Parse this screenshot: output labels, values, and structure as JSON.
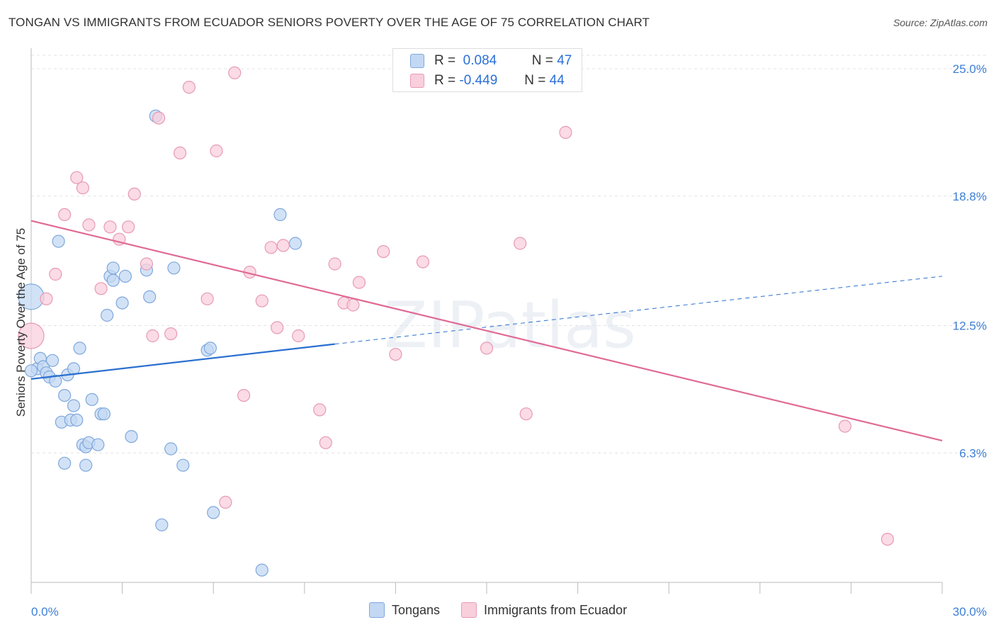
{
  "title": "TONGAN VS IMMIGRANTS FROM ECUADOR SENIORS POVERTY OVER THE AGE OF 75 CORRELATION CHART",
  "source": "Source: ZipAtlas.com",
  "watermark": "ZIPatlas",
  "legend": {
    "rows": [
      {
        "r_label": "R =",
        "r_value": "0.084",
        "n_label": "N =",
        "n_value": "47"
      },
      {
        "r_label": "R =",
        "r_value": "-0.449",
        "n_label": "N =",
        "n_value": "44"
      }
    ],
    "bottom": [
      "Tongans",
      "Immigrants from Ecuador"
    ]
  },
  "colors": {
    "tongans_fill": "#c3d8f3",
    "tongans_stroke": "#7fa8dc",
    "tongans_line": "#2a70d0",
    "ecuador_fill": "#f9cfdc",
    "ecuador_stroke": "#e79ab4",
    "ecuador_line": "#e06a95",
    "tick_label": "#3d7fd6"
  },
  "chart_data": {
    "type": "scatter",
    "xlabel": "",
    "ylabel": "Seniors Poverty Over the Age of 75",
    "xlim": [
      0,
      30
    ],
    "ylim": [
      0,
      26
    ],
    "x_tick_labels": [
      "0.0%",
      "30.0%"
    ],
    "y_ticks": [
      6.3,
      12.5,
      18.8,
      25.0
    ],
    "y_tick_labels": [
      "6.3%",
      "12.5%",
      "18.8%",
      "25.0%"
    ],
    "grid": true,
    "series": [
      {
        "name": "Tongans",
        "r": 0.084,
        "n": 47,
        "trend": {
          "x": [
            0,
            10
          ],
          "y": [
            9.9,
            11.6
          ],
          "dashed_to_x": 30,
          "dashed_end_y": 14.9
        },
        "points": [
          [
            0.0,
            13.9
          ],
          [
            0.2,
            10.4
          ],
          [
            0.3,
            10.9
          ],
          [
            0.4,
            10.5
          ],
          [
            0.5,
            10.2
          ],
          [
            0.6,
            10.0
          ],
          [
            0.7,
            10.8
          ],
          [
            0.8,
            9.8
          ],
          [
            0.9,
            16.6
          ],
          [
            1.0,
            7.8
          ],
          [
            1.1,
            5.8
          ],
          [
            1.1,
            9.1
          ],
          [
            1.2,
            10.1
          ],
          [
            1.3,
            7.9
          ],
          [
            1.4,
            8.6
          ],
          [
            1.4,
            10.4
          ],
          [
            1.5,
            7.9
          ],
          [
            1.6,
            11.4
          ],
          [
            1.7,
            6.7
          ],
          [
            1.8,
            6.6
          ],
          [
            1.8,
            5.7
          ],
          [
            1.9,
            6.8
          ],
          [
            2.0,
            8.9
          ],
          [
            2.2,
            6.7
          ],
          [
            2.3,
            8.2
          ],
          [
            2.4,
            8.2
          ],
          [
            2.5,
            13.0
          ],
          [
            2.6,
            14.9
          ],
          [
            2.7,
            14.7
          ],
          [
            2.7,
            15.3
          ],
          [
            3.0,
            13.6
          ],
          [
            3.1,
            14.9
          ],
          [
            3.3,
            7.1
          ],
          [
            3.8,
            15.2
          ],
          [
            3.9,
            13.9
          ],
          [
            4.1,
            22.7
          ],
          [
            4.3,
            2.8
          ],
          [
            4.6,
            6.5
          ],
          [
            4.7,
            15.3
          ],
          [
            5.0,
            5.7
          ],
          [
            5.8,
            11.3
          ],
          [
            5.9,
            11.4
          ],
          [
            6.0,
            3.4
          ],
          [
            7.6,
            0.6
          ],
          [
            8.2,
            17.9
          ],
          [
            8.7,
            16.5
          ],
          [
            0.0,
            10.3
          ]
        ]
      },
      {
        "name": "Immigrants from Ecuador",
        "r": -0.449,
        "n": 44,
        "trend": {
          "x": [
            0,
            30
          ],
          "y": [
            17.6,
            6.9
          ]
        },
        "points": [
          [
            0.0,
            12.0
          ],
          [
            0.5,
            13.8
          ],
          [
            0.8,
            15.0
          ],
          [
            1.1,
            17.9
          ],
          [
            1.5,
            19.7
          ],
          [
            1.7,
            19.2
          ],
          [
            1.9,
            17.4
          ],
          [
            2.3,
            14.3
          ],
          [
            2.6,
            17.3
          ],
          [
            2.9,
            16.7
          ],
          [
            3.2,
            17.3
          ],
          [
            3.4,
            18.9
          ],
          [
            3.8,
            15.5
          ],
          [
            4.0,
            12.0
          ],
          [
            4.2,
            22.6
          ],
          [
            4.6,
            12.1
          ],
          [
            4.9,
            20.9
          ],
          [
            5.2,
            24.1
          ],
          [
            5.8,
            13.8
          ],
          [
            6.1,
            21.0
          ],
          [
            6.4,
            3.9
          ],
          [
            6.7,
            24.8
          ],
          [
            7.0,
            9.1
          ],
          [
            7.2,
            15.1
          ],
          [
            7.6,
            13.7
          ],
          [
            7.9,
            16.3
          ],
          [
            8.1,
            12.4
          ],
          [
            8.3,
            16.4
          ],
          [
            8.8,
            12.0
          ],
          [
            9.5,
            8.4
          ],
          [
            9.7,
            6.8
          ],
          [
            10.0,
            15.5
          ],
          [
            10.3,
            13.6
          ],
          [
            10.6,
            13.5
          ],
          [
            10.8,
            14.6
          ],
          [
            11.6,
            16.1
          ],
          [
            12.0,
            11.1
          ],
          [
            12.9,
            15.6
          ],
          [
            15.0,
            11.4
          ],
          [
            16.1,
            16.5
          ],
          [
            16.3,
            8.2
          ],
          [
            17.6,
            21.9
          ],
          [
            26.8,
            7.6
          ],
          [
            28.2,
            2.1
          ]
        ]
      }
    ]
  }
}
